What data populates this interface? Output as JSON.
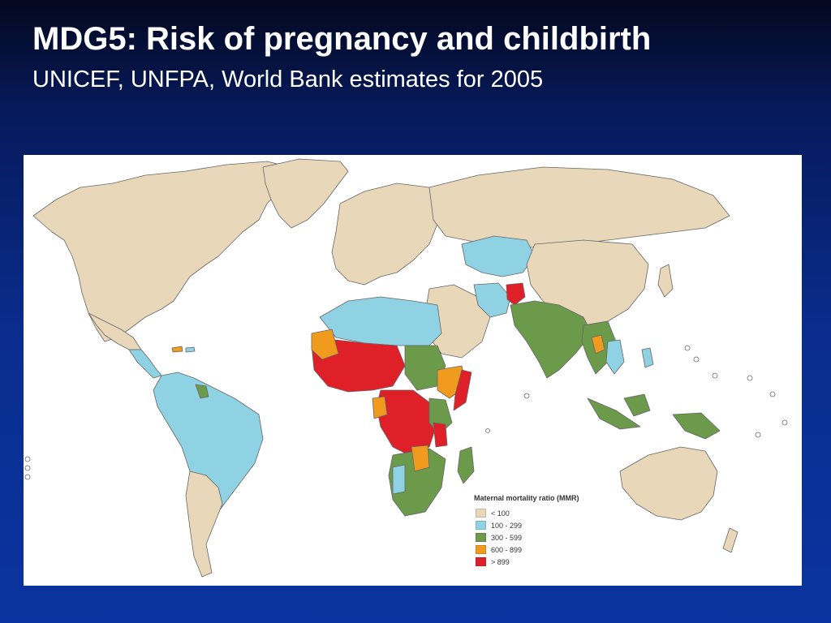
{
  "slide": {
    "title": "MDG5: Risk of pregnancy and childbirth",
    "subtitle": "UNICEF, UNFPA,  World Bank estimates for 2005"
  },
  "legend": {
    "title": "Maternal mortality ratio (MMR)",
    "items": [
      {
        "label": "< 100",
        "color": "#e8d7b9"
      },
      {
        "label": "100 - 299",
        "color": "#8fd2e3"
      },
      {
        "label": "300 - 599",
        "color": "#6b9a4a"
      },
      {
        "label": "600 - 899",
        "color": "#f09a1e"
      },
      {
        "label": "> 899",
        "color": "#e02028"
      }
    ]
  },
  "colors": {
    "ocean": "#ffffff",
    "border": "#555555"
  }
}
